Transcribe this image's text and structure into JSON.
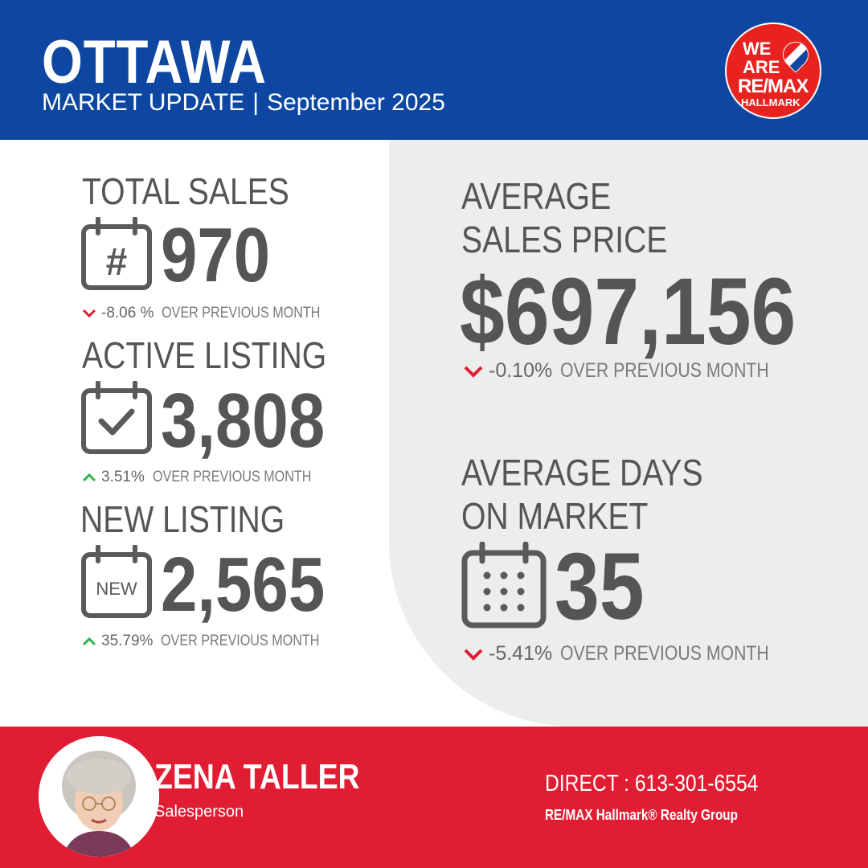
{
  "header": {
    "city": "OTTAWA",
    "subtitle_left": "MARKET UPDATE",
    "separator": "|",
    "subtitle_right": "September 2025",
    "logo": {
      "line1": "WE",
      "line2": "ARE",
      "line3": "RE/MAX",
      "line4": "HALLMARK"
    }
  },
  "stats": {
    "total_sales": {
      "label": "TOTAL SALES",
      "icon": "hash-calendar-icon",
      "value": "970",
      "change": "-8.06 %",
      "direction": "down",
      "suffix": "OVER PREVIOUS MONTH"
    },
    "active_listing": {
      "label": "ACTIVE LISTING",
      "icon": "check-calendar-icon",
      "value": "3,808",
      "change": "3.51%",
      "direction": "up",
      "suffix": "OVER PREVIOUS MONTH"
    },
    "new_listing": {
      "label": "NEW LISTING",
      "icon": "new-calendar-icon",
      "value": "2,565",
      "icon_text": "NEW",
      "change": "35.79%",
      "direction": "up",
      "suffix": "OVER PREVIOUS MONTH"
    },
    "avg_price": {
      "label_line1": "AVERAGE",
      "label_line2": "SALES PRICE",
      "value": "$697,156",
      "change": "-0.10%",
      "direction": "down",
      "suffix": "OVER PREVIOUS MONTH"
    },
    "avg_days": {
      "label_line1": "AVERAGE DAYS",
      "label_line2": "ON MARKET",
      "icon": "dots-calendar-icon",
      "value": "35",
      "change": "-5.41%",
      "direction": "down",
      "suffix": "OVER PREVIOUS MONTH"
    }
  },
  "footer": {
    "agent_name": "ZENA TALLER",
    "agent_role": "Salesperson",
    "direct": "DIRECT : 613-301-6554",
    "brokerage": "RE/MAX Hallmark® Realty Group"
  },
  "colors": {
    "blue": "#0d47a1",
    "red": "#e11d33",
    "gray_text": "#555555",
    "panel": "#eceeed",
    "up_arrow": "#2db34a",
    "down_arrow": "#e11d33"
  }
}
